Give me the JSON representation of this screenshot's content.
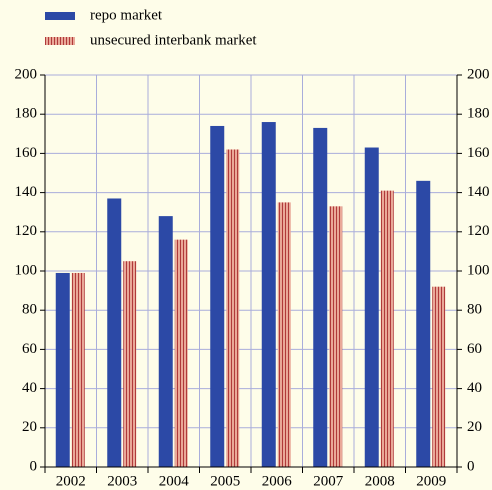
{
  "chart_data": {
    "type": "bar",
    "categories": [
      "2002",
      "2003",
      "2004",
      "2005",
      "2006",
      "2007",
      "2008",
      "2009"
    ],
    "series": [
      {
        "name": "repo market",
        "color": "#2c49a6",
        "values": [
          99,
          137,
          128,
          174,
          176,
          173,
          163,
          146
        ]
      },
      {
        "name": "unsecured interbank market",
        "color": "#e9a898",
        "values": [
          99,
          105,
          116,
          162,
          135,
          133,
          141,
          92
        ]
      }
    ],
    "ylim": [
      0,
      200
    ],
    "yticks": [
      0,
      20,
      40,
      60,
      80,
      100,
      120,
      140,
      160,
      180,
      200
    ],
    "y2lim": [
      0,
      200
    ],
    "y2ticks": [
      0,
      20,
      40,
      60,
      80,
      100,
      120,
      140,
      160,
      180,
      200
    ],
    "grid": true
  }
}
